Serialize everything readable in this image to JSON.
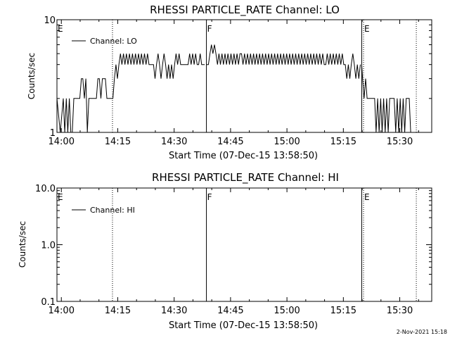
{
  "chart_data": [
    {
      "type": "line",
      "title": "RHESSI PARTICLE_RATE Channel: LO",
      "xlabel": "Start Time (07-Dec-15 13:58:50)",
      "ylabel": "Counts/sec",
      "yscale": "log",
      "ylim": [
        1,
        10
      ],
      "xlim": [
        "13:58:50",
        "15:38:30"
      ],
      "xticks": [
        "14:00",
        "14:15",
        "14:30",
        "14:45",
        "15:00",
        "15:15",
        "15:30"
      ],
      "yticks": [
        "1",
        "10"
      ],
      "legend": {
        "position": "top-left",
        "entries": [
          "Channel: LO"
        ]
      },
      "markers": [
        {
          "time": "13:58:50",
          "label": "E",
          "style": "dotted"
        },
        {
          "time": "14:13:36",
          "label": "",
          "style": "dotted"
        },
        {
          "time": "14:38:35",
          "label": "F",
          "style": "solid"
        },
        {
          "time": "15:19:53",
          "label": "",
          "style": "solid"
        },
        {
          "time": "15:20:22",
          "label": "E",
          "style": "dotted"
        },
        {
          "time": "15:34:24",
          "label": "",
          "style": "dotted"
        }
      ],
      "series": [
        {
          "name": "Channel: LO",
          "segments": [
            {
              "x": [
                "13:58:50",
                "13:59:43",
                "14:00:31",
                "14:00:55",
                "14:01:19",
                "14:01:43",
                "14:02:07",
                "14:02:31",
                "14:02:55",
                "14:03:19",
                "14:03:43",
                "14:04:07",
                "14:04:31",
                "14:04:55",
                "14:05:19",
                "14:05:43",
                "14:06:07",
                "14:06:31",
                "14:06:55",
                "14:07:19",
                "14:07:43",
                "14:08:07",
                "14:08:31",
                "14:08:55",
                "14:09:19",
                "14:09:43",
                "14:10:07",
                "14:10:31",
                "14:10:55",
                "14:11:19",
                "14:11:43",
                "14:12:07",
                "14:12:31",
                "14:12:55",
                "14:13:19",
                "14:13:43",
                "14:14:07",
                "14:14:31",
                "14:14:55",
                "14:15:19",
                "14:15:43",
                "14:16:07",
                "14:16:31",
                "14:16:55",
                "14:17:19",
                "14:17:43",
                "14:18:07",
                "14:18:31",
                "14:18:55",
                "14:19:19",
                "14:19:43",
                "14:20:07",
                "14:20:31",
                "14:20:55",
                "14:21:19",
                "14:21:43",
                "14:22:07",
                "14:22:31",
                "14:22:55",
                "14:23:19",
                "14:23:43",
                "14:24:07",
                "14:24:31",
                "14:24:55",
                "14:25:19",
                "14:25:43",
                "14:26:07",
                "14:26:31",
                "14:26:55",
                "14:27:19",
                "14:27:43",
                "14:28:07",
                "14:28:31",
                "14:28:55",
                "14:29:19",
                "14:29:43",
                "14:30:07",
                "14:30:31",
                "14:30:55",
                "14:31:19",
                "14:31:43",
                "14:32:07",
                "14:32:31",
                "14:32:55",
                "14:33:19",
                "14:33:43",
                "14:34:07",
                "14:34:31",
                "14:34:55",
                "14:35:19",
                "14:35:43",
                "14:36:07",
                "14:36:31",
                "14:36:55",
                "14:37:19",
                "14:37:43",
                "14:38:07"
              ],
              "y": [
                2,
                1,
                2,
                1,
                2,
                1,
                2,
                1,
                1,
                2,
                2,
                2,
                2,
                2,
                3,
                3,
                2,
                3,
                1,
                2,
                2,
                2,
                2,
                2,
                2,
                3,
                3,
                2,
                3,
                3,
                3,
                2,
                2,
                2,
                2,
                2,
                3,
                4,
                3,
                4,
                5,
                4,
                5,
                4,
                5,
                4,
                5,
                4,
                5,
                4,
                5,
                4,
                5,
                4,
                5,
                4,
                5,
                4,
                5,
                4,
                4,
                4,
                4,
                3,
                4,
                5,
                4,
                3,
                4,
                5,
                4,
                3,
                4,
                3,
                4,
                3,
                4,
                5,
                4,
                5,
                4,
                4,
                4,
                4,
                4,
                4,
                5,
                4,
                5,
                4,
                5,
                4,
                4,
                5,
                4,
                4,
                4
              ]
            },
            {
              "x": [
                "14:38:35",
                "14:39:07",
                "14:39:31",
                "14:39:55",
                "14:40:19",
                "14:40:43",
                "14:41:07",
                "14:41:31",
                "14:41:55",
                "14:42:19",
                "14:42:43",
                "14:43:07",
                "14:43:31",
                "14:43:55",
                "14:44:19",
                "14:44:43",
                "14:45:07",
                "14:45:31",
                "14:45:55",
                "14:46:19",
                "14:46:43",
                "14:47:07",
                "14:47:31",
                "14:47:55",
                "14:48:19",
                "14:48:43",
                "14:49:07",
                "14:49:31",
                "14:49:55",
                "14:50:19",
                "14:50:43",
                "14:51:07",
                "14:51:31",
                "14:51:55",
                "14:52:19",
                "14:52:43",
                "14:53:07",
                "14:53:31",
                "14:53:55",
                "14:54:19",
                "14:54:43",
                "14:55:07",
                "14:55:31",
                "14:55:55",
                "14:56:19",
                "14:56:43",
                "14:57:07",
                "14:57:31",
                "14:57:55",
                "14:58:19",
                "14:58:43",
                "14:59:07",
                "14:59:31",
                "14:59:55",
                "15:00:19",
                "15:00:43",
                "15:01:07",
                "15:01:31",
                "15:01:55",
                "15:02:19",
                "15:02:43",
                "15:03:07",
                "15:03:31",
                "15:03:55",
                "15:04:19",
                "15:04:43",
                "15:05:07",
                "15:05:31",
                "15:05:55",
                "15:06:19",
                "15:06:43",
                "15:07:07",
                "15:07:31",
                "15:07:55",
                "15:08:19",
                "15:08:43",
                "15:09:07",
                "15:09:31",
                "15:09:55",
                "15:10:19",
                "15:10:43",
                "15:11:07",
                "15:11:31",
                "15:11:55",
                "15:12:19",
                "15:12:43",
                "15:13:07",
                "15:13:31",
                "15:13:55",
                "15:14:19",
                "15:14:43",
                "15:15:07",
                "15:15:31",
                "15:15:55",
                "15:16:19",
                "15:16:43",
                "15:17:07",
                "15:17:31",
                "15:17:55",
                "15:18:19",
                "15:18:43",
                "15:19:07",
                "15:19:31"
              ],
              "y": [
                4,
                4,
                5,
                6,
                5,
                6,
                5,
                4,
                5,
                4,
                5,
                4,
                5,
                4,
                5,
                4,
                5,
                4,
                5,
                4,
                5,
                4,
                5,
                5,
                4,
                5,
                4,
                5,
                4,
                5,
                4,
                5,
                4,
                5,
                4,
                5,
                4,
                5,
                4,
                5,
                4,
                5,
                4,
                5,
                4,
                5,
                4,
                5,
                4,
                5,
                4,
                5,
                4,
                5,
                4,
                5,
                4,
                5,
                4,
                5,
                4,
                5,
                4,
                5,
                4,
                5,
                4,
                5,
                4,
                5,
                4,
                5,
                4,
                5,
                4,
                5,
                4,
                5,
                4,
                4,
                5,
                4,
                5,
                4,
                5,
                4,
                5,
                4,
                5,
                4,
                5,
                4,
                4,
                3,
                4,
                3,
                4,
                5,
                4,
                3,
                4,
                3,
                4
              ]
            },
            {
              "x": [
                "15:19:53",
                "15:20:07",
                "15:20:31",
                "15:20:55",
                "15:21:19",
                "15:21:43",
                "15:22:07",
                "15:22:31",
                "15:22:55",
                "15:23:19",
                "15:23:43",
                "15:24:07",
                "15:24:31",
                "15:24:55",
                "15:25:19",
                "15:25:43",
                "15:26:07",
                "15:26:31",
                "15:26:55",
                "15:27:19",
                "15:27:43",
                "15:28:07",
                "15:28:31",
                "15:28:55",
                "15:29:19",
                "15:29:43",
                "15:30:07",
                "15:30:31",
                "15:30:55",
                "15:31:19",
                "15:31:43",
                "15:32:07",
                "15:32:31",
                "15:32:55"
              ],
              "y": [
                4,
                3,
                2,
                3,
                2,
                2,
                2,
                2,
                2,
                2,
                1,
                2,
                1,
                2,
                1,
                2,
                1,
                2,
                1,
                2,
                2,
                2,
                2,
                1,
                2,
                1,
                2,
                1,
                2,
                1,
                2,
                2,
                2,
                1
              ]
            }
          ]
        }
      ]
    },
    {
      "type": "line",
      "title": "RHESSI PARTICLE_RATE Channel: HI",
      "xlabel": "Start Time (07-Dec-15 13:58:50)",
      "ylabel": "Counts/sec",
      "yscale": "log",
      "ylim": [
        0.1,
        10
      ],
      "xlim": [
        "13:58:50",
        "15:38:30"
      ],
      "xticks": [
        "14:00",
        "14:15",
        "14:30",
        "14:45",
        "15:00",
        "15:15",
        "15:30"
      ],
      "yticks": [
        "0.1",
        "1.0",
        "10.0"
      ],
      "legend": {
        "position": "top-left",
        "entries": [
          "Channel: HI"
        ]
      },
      "markers": [
        {
          "time": "13:58:50",
          "label": "E",
          "style": "dotted"
        },
        {
          "time": "14:13:36",
          "label": "",
          "style": "dotted"
        },
        {
          "time": "14:38:35",
          "label": "F",
          "style": "solid"
        },
        {
          "time": "15:19:53",
          "label": "",
          "style": "solid"
        },
        {
          "time": "15:20:22",
          "label": "E",
          "style": "dotted"
        },
        {
          "time": "15:34:24",
          "label": "",
          "style": "dotted"
        }
      ],
      "series": [
        {
          "name": "Channel: HI",
          "segments": []
        }
      ]
    }
  ],
  "footer": {
    "timestamp": "2-Nov-2021 15:18"
  }
}
